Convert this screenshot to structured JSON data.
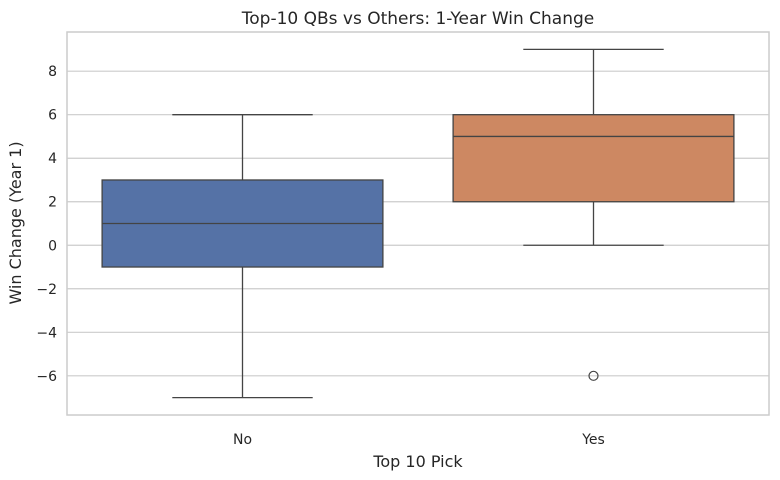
{
  "chart_data": {
    "type": "box",
    "title": "Top-10 QBs vs Others: 1-Year Win Change",
    "xlabel": "Top 10 Pick",
    "ylabel": "Win Change (Year 1)",
    "categories": [
      "No",
      "Yes"
    ],
    "ylim": [
      -7.8,
      9.8
    ],
    "yticks": [
      -6,
      -4,
      -2,
      0,
      2,
      4,
      6,
      8
    ],
    "ytick_labels": [
      "−6",
      "−4",
      "−2",
      "0",
      "2",
      "4",
      "6",
      "8"
    ],
    "grid": "y",
    "legend": "none",
    "boxes": [
      {
        "category": "No",
        "whisker_low": -7,
        "q1": -1,
        "median": 1,
        "q3": 3,
        "whisker_high": 6,
        "outliers": [],
        "color": "#5572a6"
      },
      {
        "category": "Yes",
        "whisker_low": 0,
        "q1": 2,
        "median": 5,
        "q3": 6,
        "whisker_high": 9,
        "outliers": [
          -6
        ],
        "color": "#cd8862"
      }
    ]
  }
}
